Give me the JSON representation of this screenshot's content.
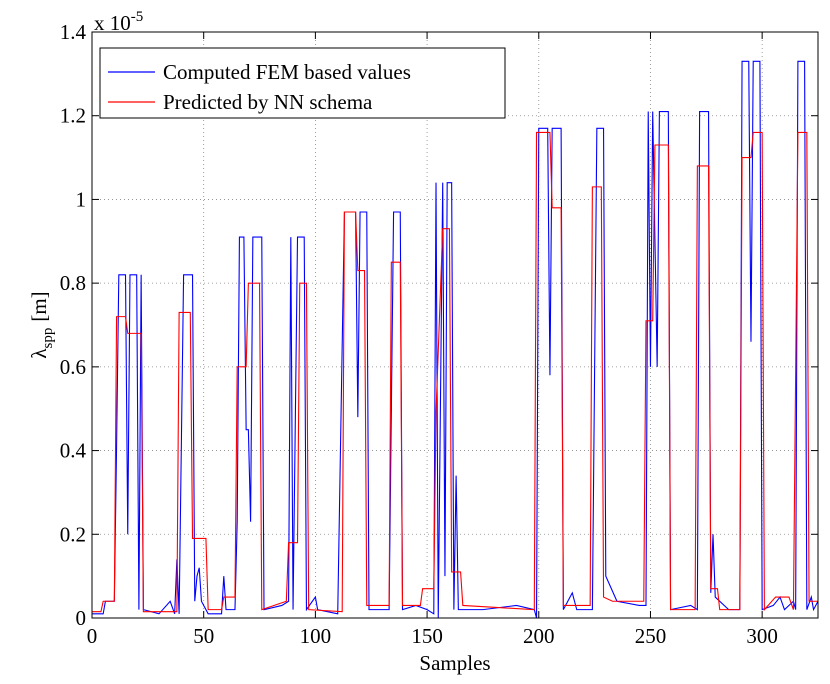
{
  "chart_data": {
    "type": "line",
    "xlabel": "Samples",
    "ylabel": "λ",
    "ylabel_sub": "spp",
    "ylabel_unit": "[m]",
    "y_scale_label": "x 10",
    "y_scale_exponent": "-5",
    "xlim": [
      0,
      325
    ],
    "xticks": [
      0,
      50,
      100,
      150,
      200,
      250,
      300
    ],
    "ylim": [
      0,
      1.4
    ],
    "yticks": [
      0,
      0.2,
      0.4,
      0.6,
      0.8,
      1,
      1.2,
      1.4
    ],
    "grid": true,
    "legend": "upper left",
    "series": [
      {
        "name": "Computed FEM based values",
        "color": "#0000ff",
        "x": [
          0,
          5,
          6,
          10,
          11,
          12,
          15,
          16,
          17,
          20,
          21,
          22,
          23,
          30,
          35,
          37,
          38,
          39,
          41,
          45,
          46,
          47,
          48,
          49,
          52,
          58,
          59,
          60,
          64,
          65,
          66,
          68,
          69,
          70,
          71,
          72,
          76,
          77,
          85,
          88,
          89,
          90,
          92,
          95,
          96,
          100,
          101,
          110,
          113,
          118,
          119,
          120,
          123,
          124,
          133,
          135,
          138,
          139,
          145,
          150,
          153,
          154,
          155,
          157,
          158,
          159,
          161,
          162,
          163,
          164,
          175,
          190,
          198,
          199,
          200,
          204,
          205,
          206,
          210,
          211,
          215,
          217,
          224,
          226,
          229,
          230,
          235,
          245,
          248,
          249,
          250,
          251,
          253,
          254,
          258,
          259,
          268,
          271,
          272,
          276,
          277,
          278,
          279,
          285,
          290,
          291,
          294,
          295,
          296,
          299,
          300,
          305,
          308,
          310,
          314,
          315,
          316,
          319,
          320,
          322,
          323,
          325
        ],
        "values": [
          0.01,
          0.01,
          0.04,
          0.04,
          0.41,
          0.82,
          0.82,
          0.2,
          0.82,
          0.82,
          0.02,
          0.82,
          0.02,
          0.01,
          0.04,
          0.01,
          0.14,
          0.01,
          0.82,
          0.82,
          0.04,
          0.1,
          0.12,
          0.04,
          0.01,
          0.01,
          0.1,
          0.02,
          0.02,
          0.23,
          0.91,
          0.91,
          0.45,
          0.45,
          0.23,
          0.91,
          0.91,
          0.02,
          0.03,
          0.04,
          0.91,
          0.02,
          0.91,
          0.91,
          0.02,
          0.05,
          0.02,
          0.01,
          0.97,
          0.97,
          0.48,
          0.97,
          0.97,
          0.02,
          0.02,
          0.97,
          0.97,
          0.02,
          0.03,
          0.02,
          0.01,
          1.04,
          0,
          1.04,
          0.1,
          1.04,
          1.04,
          0.02,
          0.34,
          0.02,
          0.02,
          0.03,
          0.02,
          0,
          1.17,
          1.17,
          0.58,
          1.17,
          1.17,
          0.02,
          0.06,
          0.02,
          0.02,
          1.17,
          1.17,
          0.1,
          0.04,
          0.03,
          0.03,
          1.21,
          0.6,
          1.21,
          0.6,
          1.21,
          1.21,
          0.02,
          0.03,
          0.02,
          1.21,
          1.21,
          0.06,
          0.2,
          0.05,
          0.02,
          0.02,
          1.33,
          1.33,
          0.66,
          1.33,
          1.33,
          0.02,
          0.03,
          0.05,
          0.02,
          0.04,
          0.02,
          1.33,
          1.33,
          0.02,
          0.05,
          0.02,
          0.04
        ]
      },
      {
        "name": "Predicted by NN schema",
        "color": "#ff0000",
        "x": [
          0,
          4,
          5,
          10,
          11,
          15,
          16,
          22,
          23,
          38,
          39,
          44,
          45,
          51,
          52,
          58,
          59,
          64,
          65,
          69,
          70,
          75,
          76,
          87,
          88,
          92,
          93,
          96,
          97,
          112,
          113,
          118,
          119,
          122,
          123,
          133,
          134,
          138,
          139,
          147,
          148,
          153,
          154,
          157,
          160,
          161,
          165,
          166,
          198,
          199,
          205,
          206,
          210,
          211,
          223,
          224,
          228,
          229,
          233,
          247,
          248,
          251,
          252,
          258,
          259,
          270,
          271,
          276,
          277,
          280,
          281,
          290,
          291,
          295,
          296,
          300,
          301,
          306,
          312,
          314,
          316,
          320,
          321,
          325
        ],
        "values": [
          0.015,
          0.015,
          0.04,
          0.04,
          0.72,
          0.72,
          0.68,
          0.68,
          0.015,
          0.015,
          0.73,
          0.73,
          0.19,
          0.19,
          0.02,
          0.02,
          0.05,
          0.05,
          0.6,
          0.6,
          0.8,
          0.8,
          0.02,
          0.04,
          0.18,
          0.18,
          0.8,
          0.8,
          0.02,
          0.015,
          0.97,
          0.97,
          0.83,
          0.83,
          0.03,
          0.03,
          0.85,
          0.85,
          0.03,
          0.03,
          0.07,
          0.07,
          0.49,
          0.93,
          0.93,
          0.11,
          0.11,
          0.03,
          0.02,
          1.16,
          1.16,
          0.98,
          0.98,
          0.03,
          0.03,
          1.03,
          1.03,
          0.05,
          0.04,
          0.04,
          0.71,
          0.71,
          1.13,
          1.13,
          0.02,
          0.02,
          1.08,
          1.08,
          0.07,
          0.07,
          0.02,
          0.02,
          1.1,
          1.1,
          1.16,
          1.16,
          0.02,
          0.05,
          0.05,
          0.02,
          1.16,
          1.16,
          0.04,
          0.04
        ]
      }
    ]
  }
}
